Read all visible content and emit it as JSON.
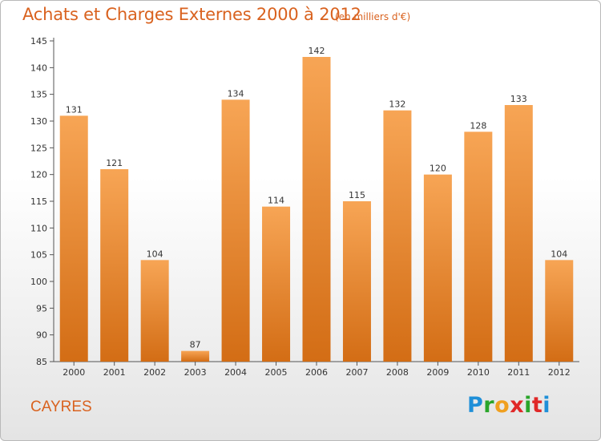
{
  "title": "Achats et Charges Externes 2000 à 2012",
  "subtitle": "(en milliers d'€)",
  "location": "CAYRES",
  "logo": {
    "letters": [
      "P",
      "r",
      "o",
      "x",
      "i",
      "t",
      "i"
    ],
    "colors": [
      "#1f8fd8",
      "#2aa52a",
      "#f0a020",
      "#e02828",
      "#2aa52a",
      "#e02828",
      "#1f8fd8"
    ]
  },
  "chart_data": {
    "type": "bar",
    "categories": [
      "2000",
      "2001",
      "2002",
      "2003",
      "2004",
      "2005",
      "2006",
      "2007",
      "2008",
      "2009",
      "2010",
      "2011",
      "2012"
    ],
    "values": [
      131,
      121,
      104,
      87,
      134,
      114,
      142,
      115,
      132,
      120,
      128,
      133,
      104
    ],
    "ylim": [
      85,
      145
    ],
    "yticks": [
      85,
      90,
      95,
      100,
      105,
      110,
      115,
      120,
      125,
      130,
      135,
      140,
      145
    ],
    "grid": false,
    "bar_color": "#e8872d"
  }
}
